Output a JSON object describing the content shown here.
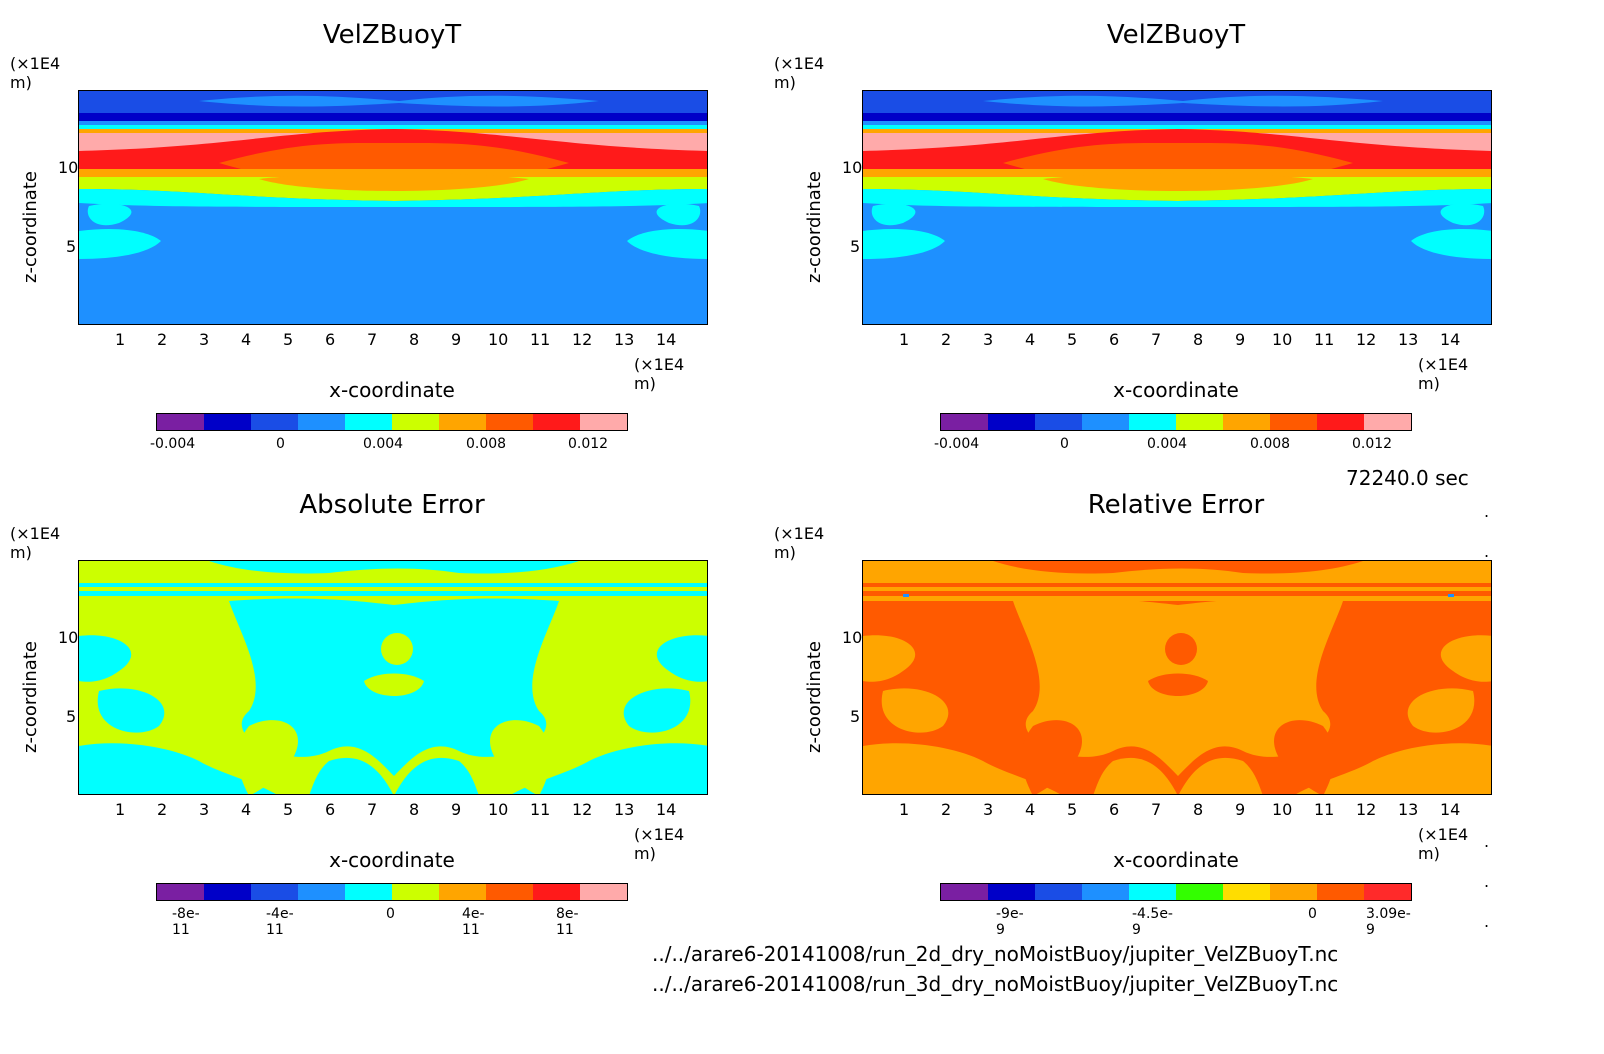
{
  "chart_data": [
    {
      "type": "heatmap",
      "title": "VelZBuoyT",
      "xlabel": "x-coordinate",
      "ylabel": "z-coordinate",
      "x_unit": "(×1E4 m)",
      "z_unit": "(×1E4 m)",
      "xticks": [
        "1",
        "2",
        "3",
        "4",
        "5",
        "6",
        "7",
        "8",
        "9",
        "10",
        "11",
        "12",
        "13",
        "14"
      ],
      "zticks": [
        "5",
        "10"
      ],
      "colorbar_ticks": [
        "-0.004",
        "0",
        "0.004",
        "0.008",
        "0.012"
      ],
      "colorbar_colors": [
        "#7a1fa2",
        "#0000c8",
        "#1a4de6",
        "#1e90ff",
        "#00ffff",
        "#ccff00",
        "#ffa500",
        "#ff5a00",
        "#ff1a1a",
        "#ffaaaa"
      ]
    },
    {
      "type": "heatmap",
      "title": "VelZBuoyT",
      "xlabel": "x-coordinate",
      "ylabel": "z-coordinate",
      "x_unit": "(×1E4 m)",
      "z_unit": "(×1E4 m)",
      "xticks": [
        "1",
        "2",
        "3",
        "4",
        "5",
        "6",
        "7",
        "8",
        "9",
        "10",
        "11",
        "12",
        "13",
        "14"
      ],
      "zticks": [
        "5",
        "10"
      ],
      "colorbar_ticks": [
        "-0.004",
        "0",
        "0.004",
        "0.008",
        "0.012"
      ],
      "colorbar_colors": [
        "#7a1fa2",
        "#0000c8",
        "#1a4de6",
        "#1e90ff",
        "#00ffff",
        "#ccff00",
        "#ffa500",
        "#ff5a00",
        "#ff1a1a",
        "#ffaaaa"
      ]
    },
    {
      "type": "heatmap",
      "title": "Absolute Error",
      "xlabel": "x-coordinate",
      "ylabel": "z-coordinate",
      "x_unit": "(×1E4 m)",
      "z_unit": "(×1E4 m)",
      "xticks": [
        "1",
        "2",
        "3",
        "4",
        "5",
        "6",
        "7",
        "8",
        "9",
        "10",
        "11",
        "12",
        "13",
        "14"
      ],
      "zticks": [
        "5",
        "10"
      ],
      "colorbar_ticks": [
        "-8e-11",
        "-4e-11",
        "0",
        "4e-11",
        "8e-11"
      ],
      "colorbar_colors": [
        "#7a1fa2",
        "#0000c8",
        "#1a4de6",
        "#1e90ff",
        "#00ffff",
        "#ccff00",
        "#ffa500",
        "#ff5a00",
        "#ff1a1a",
        "#ffaaaa"
      ]
    },
    {
      "type": "heatmap",
      "title": "Relative Error",
      "xlabel": "x-coordinate",
      "ylabel": "z-coordinate",
      "x_unit": "(×1E4 m)",
      "z_unit": "(×1E4 m)",
      "xticks": [
        "1",
        "2",
        "3",
        "4",
        "5",
        "6",
        "7",
        "8",
        "9",
        "10",
        "11",
        "12",
        "13",
        "14"
      ],
      "zticks": [
        "5",
        "10"
      ],
      "colorbar_ticks": [
        "-9e-9",
        "-4.5e-9",
        "0",
        "3.09e-9"
      ],
      "colorbar_colors": [
        "#7a1fa2",
        "#0000c8",
        "#1a4de6",
        "#1e90ff",
        "#00ffff",
        "#33ff00",
        "#ffdd00",
        "#ffa500",
        "#ff5a00",
        "#ff2a2a"
      ]
    }
  ],
  "time_label": "72240.0 sec",
  "file1": "../../arare6-20141008/run_2d_dry_noMoistBuoy/jupiter_VelZBuoyT.nc",
  "file2": "../../arare6-20141008/run_3d_dry_noMoistBuoy/jupiter_VelZBuoyT.nc"
}
